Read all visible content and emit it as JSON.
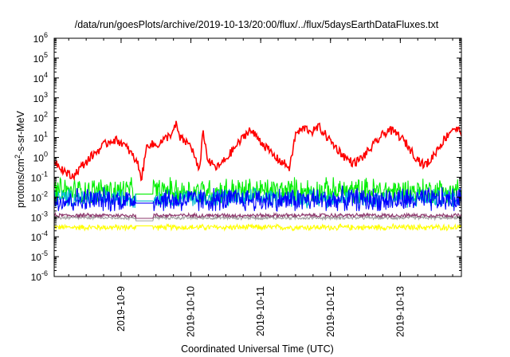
{
  "chart_data": {
    "type": "line",
    "title": "/data/run/goesPlots/archive/2019-10-13/20:00/flux/../flux/5daysEarthDataFluxes.txt",
    "xlabel": "Coordinated Universal Time (UTC)",
    "ylabel": {
      "base": "protons/cm",
      "sup": "2",
      "rest": "-s-sr-MeV"
    },
    "y_scale": "log",
    "ylim": [
      1e-06,
      1000000.0
    ],
    "y_ticks": [
      {
        "exp": "-6",
        "value": 1e-06
      },
      {
        "exp": "-5",
        "value": 1e-05
      },
      {
        "exp": "-4",
        "value": 0.0001
      },
      {
        "exp": "-3",
        "value": 0.001
      },
      {
        "exp": "-2",
        "value": 0.01
      },
      {
        "exp": "-1",
        "value": 0.1
      },
      {
        "exp": "0",
        "value": 1
      },
      {
        "exp": "1",
        "value": 10
      },
      {
        "exp": "2",
        "value": 100
      },
      {
        "exp": "3",
        "value": 1000
      },
      {
        "exp": "4",
        "value": 10000
      },
      {
        "exp": "5",
        "value": 100000
      },
      {
        "exp": "6",
        "value": 1000000
      }
    ],
    "y_tick_base": "10",
    "x_scale": "time",
    "xlim": [
      "2019-10-08T01:00",
      "2019-10-13T21:00"
    ],
    "x_ticks": [
      "2019-10-9",
      "2019-10-10",
      "2019-10-11",
      "2019-10-12",
      "2019-10-13"
    ],
    "x_tick_values": [
      "2019-10-09T00:00",
      "2019-10-10T00:00",
      "2019-10-11T00:00",
      "2019-10-12T00:00",
      "2019-10-13T00:00"
    ],
    "grid": false,
    "legend": "none",
    "series": [
      {
        "color": "#ff0000",
        "style": "smooth",
        "noise": 0.22,
        "points": [
          [
            "2019-10-08T01:00",
            0.7
          ],
          [
            "2019-10-08T04:00",
            0.25
          ],
          [
            "2019-10-08T07:00",
            0.1
          ],
          [
            "2019-10-08T10:00",
            0.3
          ],
          [
            "2019-10-08T14:00",
            1.2
          ],
          [
            "2019-10-08T18:00",
            4
          ],
          [
            "2019-10-08T21:00",
            8
          ],
          [
            "2019-10-09T00:00",
            6
          ],
          [
            "2019-10-09T03:00",
            2
          ],
          [
            "2019-10-09T06:00",
            0.4
          ],
          [
            "2019-10-09T07:00",
            0.08
          ],
          [
            "2019-10-09T09:00",
            5
          ],
          [
            "2019-10-09T12:00",
            4
          ],
          [
            "2019-10-09T15:00",
            8
          ],
          [
            "2019-10-09T18:00",
            20
          ],
          [
            "2019-10-09T19:00",
            50
          ],
          [
            "2019-10-09T20:00",
            10
          ],
          [
            "2019-10-10T00:00",
            4
          ],
          [
            "2019-10-10T02:00",
            0.5
          ],
          [
            "2019-10-10T03:00",
            0.15
          ],
          [
            "2019-10-10T04:00",
            25
          ],
          [
            "2019-10-10T06:00",
            0.6
          ],
          [
            "2019-10-10T09:00",
            0.3
          ],
          [
            "2019-10-10T12:00",
            0.8
          ],
          [
            "2019-10-10T15:00",
            3
          ],
          [
            "2019-10-10T18:00",
            10
          ],
          [
            "2019-10-10T20:00",
            25
          ],
          [
            "2019-10-10T23:00",
            10
          ],
          [
            "2019-10-11T02:00",
            3
          ],
          [
            "2019-10-11T05:00",
            1
          ],
          [
            "2019-10-11T08:00",
            0.5
          ],
          [
            "2019-10-11T10:00",
            0.3
          ],
          [
            "2019-10-11T12:00",
            15
          ],
          [
            "2019-10-11T15:00",
            30
          ],
          [
            "2019-10-11T18:00",
            20
          ],
          [
            "2019-10-11T20:00",
            35
          ],
          [
            "2019-10-11T23:00",
            10
          ],
          [
            "2019-10-12T02:00",
            3
          ],
          [
            "2019-10-12T05:00",
            1
          ],
          [
            "2019-10-12T08:00",
            0.5
          ],
          [
            "2019-10-12T11:00",
            1
          ],
          [
            "2019-10-12T14:00",
            3
          ],
          [
            "2019-10-12T17:00",
            10
          ],
          [
            "2019-10-12T20:00",
            25
          ],
          [
            "2019-10-12T23:00",
            15
          ],
          [
            "2019-10-13T02:00",
            5
          ],
          [
            "2019-10-13T05:00",
            1.2
          ],
          [
            "2019-10-13T08:00",
            0.4
          ],
          [
            "2019-10-13T10:00",
            0.6
          ],
          [
            "2019-10-13T13:00",
            3
          ],
          [
            "2019-10-13T16:00",
            12
          ],
          [
            "2019-10-13T18:00",
            30
          ],
          [
            "2019-10-13T21:00",
            20
          ]
        ]
      },
      {
        "color": "#00ee00",
        "style": "noise",
        "center": 0.02,
        "spread": 0.8,
        "max": 0.1,
        "min": 0.005
      },
      {
        "color": "#00bbcc",
        "style": "noise",
        "center": 0.009,
        "spread": 0.55,
        "max": 0.04,
        "min": 0.0025
      },
      {
        "color": "#0000ff",
        "style": "noise",
        "center": 0.007,
        "spread": 0.75,
        "max": 0.05,
        "min": 0.002
      },
      {
        "color": "#8e3a6e",
        "style": "noise",
        "center": 0.0012,
        "spread": 0.12,
        "max": 0.002,
        "min": 0.0009
      },
      {
        "color": "#a0a0a0",
        "style": "noise",
        "center": 0.0009,
        "spread": 0.1,
        "max": 0.0014,
        "min": 0.0007
      },
      {
        "color": "#ffff00",
        "style": "noise",
        "center": 0.0003,
        "spread": 0.18,
        "max": 0.0006,
        "min": 0.0002
      }
    ],
    "data_gap": [
      "2019-10-09T05:00",
      "2019-10-09T11:00"
    ]
  }
}
